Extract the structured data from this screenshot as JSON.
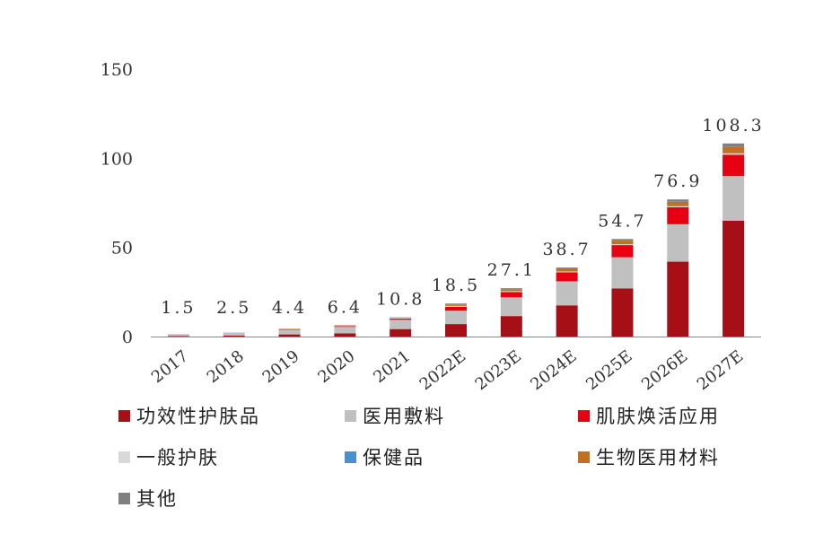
{
  "chart_data": {
    "type": "bar",
    "stacked": true,
    "title": "",
    "xlabel": "",
    "ylabel": "",
    "ylim": [
      0,
      150
    ],
    "yticks": [
      0,
      50,
      100,
      150
    ],
    "grid": false,
    "legend_placement": "bottom",
    "categories": [
      "2017",
      "2018",
      "2019",
      "2020",
      "2021",
      "2022E",
      "2023E",
      "2024E",
      "2025E",
      "2026E",
      "2027E"
    ],
    "totals": [
      1.5,
      2.5,
      4.4,
      6.4,
      10.8,
      18.5,
      27.1,
      38.7,
      54.7,
      76.9,
      108.3
    ],
    "totals_labels": [
      "1.5",
      "2.5",
      "4.4",
      "6.4",
      "10.8",
      "18.5",
      "27.1",
      "38.7",
      "54.7",
      "76.9",
      "108.3"
    ],
    "series": [
      {
        "name": "功效性护肤品",
        "color": "#a50f15",
        "values": [
          0.3,
          0.5,
          1.2,
          1.8,
          4.2,
          7.0,
          11.5,
          17.5,
          27.0,
          42.0,
          65.0
        ]
      },
      {
        "name": "医用敷料",
        "color": "#c0c0c0",
        "values": [
          0.9,
          1.6,
          2.4,
          3.6,
          5.2,
          7.5,
          10.5,
          13.5,
          17.5,
          21.0,
          25.0
        ]
      },
      {
        "name": "肌肤焕活应用",
        "color": "#e60012",
        "values": [
          0.0,
          0.0,
          0.2,
          0.4,
          0.7,
          2.2,
          3.0,
          5.0,
          6.8,
          9.5,
          12.0
        ]
      },
      {
        "name": "一般护肤",
        "color": "#d9d9d9",
        "values": [
          0.3,
          0.4,
          0.5,
          0.5,
          0.5,
          0.5,
          0.5,
          0.5,
          0.5,
          0.6,
          0.8
        ]
      },
      {
        "name": "保健品",
        "color": "#4a90d0",
        "values": [
          0.0,
          0.0,
          0.0,
          0.0,
          0.0,
          0.0,
          0.0,
          0.0,
          0.0,
          0.0,
          0.0
        ]
      },
      {
        "name": "生物医用材料",
        "color": "#c07020",
        "values": [
          0.0,
          0.0,
          0.1,
          0.1,
          0.2,
          0.8,
          1.0,
          1.5,
          2.0,
          2.5,
          3.5
        ]
      },
      {
        "name": "其他",
        "color": "#808080",
        "values": [
          0.0,
          0.0,
          0.0,
          0.0,
          0.0,
          0.5,
          0.6,
          0.7,
          0.9,
          1.3,
          2.0
        ]
      }
    ]
  }
}
